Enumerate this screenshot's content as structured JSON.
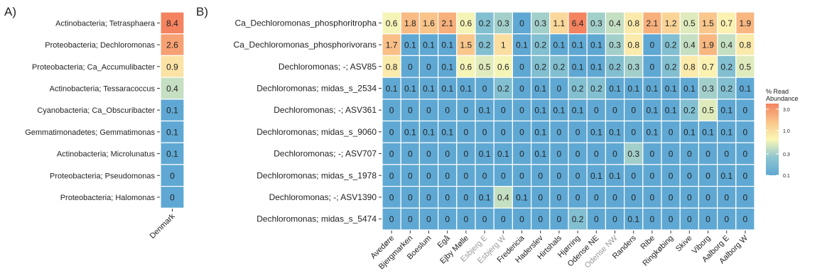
{
  "chart_data": [
    {
      "panel_label": "A)",
      "type": "heatmap",
      "x_categories": [
        "Denmark"
      ],
      "y_categories": [
        "Actinobacteria; Tetrasphaera",
        "Proteobacteria; Dechloromonas",
        "Proteobacteria; Ca_Accumulibacter",
        "Actinobacteria; Tessaracoccus",
        "Cyanobacteria; Ca_Obscuribacter",
        "Gemmatimonadetes; Gemmatimonas",
        "Actinobacteria; Microlunatus",
        "Proteobacteria; Pseudomonas",
        "Proteobacteria; Halomonas"
      ],
      "values": [
        [
          8.4
        ],
        [
          2.6
        ],
        [
          0.9
        ],
        [
          0.4
        ],
        [
          0.1
        ],
        [
          0.1
        ],
        [
          0.1
        ],
        [
          0
        ],
        [
          0
        ]
      ],
      "color_scale": "log"
    },
    {
      "panel_label": "B)",
      "type": "heatmap",
      "x_categories": [
        "Avedøre",
        "Bjergmarken",
        "Boeslum",
        "Egå",
        "Ejby Mølle",
        "Esbjerg E",
        "Esbjerg W",
        "Fredericia",
        "Haderslev",
        "Hirtshals",
        "Hjørring",
        "Odense NE",
        "Odense NW",
        "Randers",
        "Ribe",
        "Ringkøbing",
        "Skive",
        "Viborg",
        "Aalborg E",
        "Aalborg W"
      ],
      "x_label_gray": [
        "Esbjerg E",
        "Esbjerg W",
        "Odense NW"
      ],
      "y_categories": [
        "Ca_Dechloromonas_phosphoritropha",
        "Ca_Dechloromonas_phosphorivorans",
        "Dechloromonas; -; ASV85",
        "Dechloromonas; midas_s_2534",
        "Dechloromonas; -; ASV361",
        "Dechloromonas; midas_s_9060",
        "Dechloromonas; -; ASV707",
        "Dechloromonas; midas_s_1978",
        "Dechloromonas; -; ASV1390",
        "Dechloromonas; midas_s_5474"
      ],
      "values": [
        [
          0.6,
          1.8,
          1.6,
          2.1,
          0.6,
          0.2,
          0.3,
          0,
          0.3,
          1.1,
          6.4,
          0.3,
          0.4,
          0.8,
          2.1,
          1.2,
          0.5,
          1.5,
          0.7,
          1.9
        ],
        [
          1.7,
          0.1,
          0.1,
          0.1,
          1.5,
          0.2,
          1,
          0.1,
          0.2,
          0.1,
          0.1,
          0.1,
          0.3,
          0.8,
          0,
          0.2,
          0.4,
          1.9,
          0.4,
          0.8
        ],
        [
          0.8,
          0,
          0,
          0.1,
          0.6,
          0.5,
          0.6,
          0,
          0.2,
          0.2,
          0.1,
          0.1,
          0.2,
          0.3,
          0,
          0.2,
          0.8,
          0.7,
          0.2,
          0.5
        ],
        [
          0.1,
          0.1,
          0.1,
          0.1,
          0.1,
          0,
          0.2,
          0,
          0.1,
          0,
          0.2,
          0.2,
          0.1,
          0.1,
          0.1,
          0.1,
          0.1,
          0.3,
          0.2,
          0.1
        ],
        [
          0,
          0,
          0,
          0,
          0,
          0.1,
          0,
          0,
          0.1,
          0.1,
          0.1,
          0,
          0,
          0,
          0.1,
          0.1,
          0.2,
          0.5,
          0.1,
          0
        ],
        [
          0,
          0.1,
          0.1,
          0.1,
          0,
          0,
          0,
          0,
          0.1,
          0,
          0,
          0.1,
          0.1,
          0,
          0.1,
          0,
          0.1,
          0.1,
          0.1,
          0
        ],
        [
          0,
          0,
          0,
          0,
          0,
          0.1,
          0.1,
          0,
          0.1,
          0,
          0,
          0,
          0,
          0.3,
          0,
          0,
          0,
          0,
          0,
          0
        ],
        [
          0,
          0,
          0,
          0,
          0,
          0,
          0,
          0,
          0,
          0,
          0,
          0.1,
          0.1,
          0,
          0,
          0,
          0,
          0,
          0.1,
          0
        ],
        [
          0,
          0,
          0,
          0,
          0,
          0.1,
          0.4,
          0.1,
          0,
          0,
          0,
          0,
          0,
          0,
          0,
          0,
          0,
          0,
          0,
          0
        ],
        [
          0,
          0,
          0,
          0,
          0,
          0,
          0,
          0,
          0,
          0,
          0.2,
          0,
          0,
          0.1,
          0,
          0,
          0,
          0,
          0,
          0
        ]
      ],
      "color_scale": "log"
    }
  ],
  "legend": {
    "title_line1": "% Read",
    "title_line2": "Abundance",
    "tick_labels": [
      "3.0",
      "1.0",
      "0.3",
      "0.1"
    ],
    "tick_values": [
      3.0,
      1.0,
      0.3,
      0.1
    ],
    "range": [
      0.1,
      4.0
    ],
    "placement": "right"
  },
  "colors": {
    "low": "#5fa8d3",
    "mid": "#fbf7b6",
    "high": "#f4835f",
    "cell_border": "#ffffff",
    "label_text": "#222222",
    "gray_label": "#999999"
  }
}
